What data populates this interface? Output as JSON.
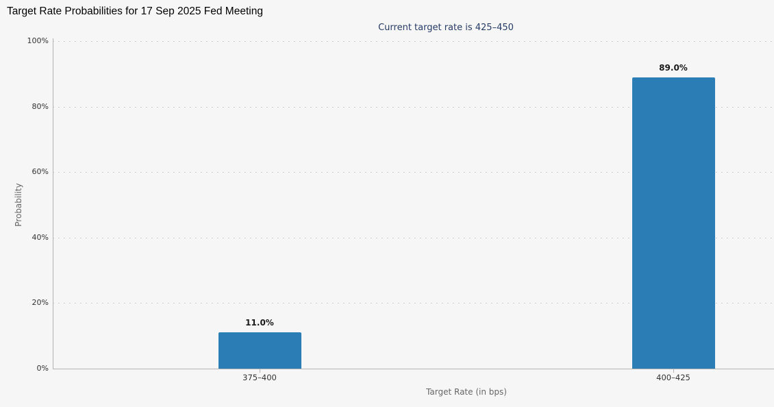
{
  "page": {
    "background_color": "#f6f6f6"
  },
  "chart_data": {
    "type": "bar",
    "title": "Target Rate Probabilities for 17 Sep 2025 Fed Meeting",
    "subtitle": "Current target rate is 425–450",
    "categories": [
      "375–400",
      "400–425"
    ],
    "values": [
      11.0,
      89.0
    ],
    "value_labels": [
      "11.0%",
      "89.0%"
    ],
    "xlabel": "Target Rate (in bps)",
    "ylabel": "Probability",
    "ylim": [
      0,
      100
    ],
    "yticks": [
      0,
      20,
      40,
      60,
      80,
      100
    ],
    "ytick_labels": [
      "0%",
      "20%",
      "40%",
      "60%",
      "80%",
      "100%"
    ],
    "grid": "horizontal dotted",
    "legend": "none",
    "bar_color": "#2b7db6",
    "subtitle_color": "#263a66",
    "gridline_color": "#cdcdcd",
    "axis_line_color": "#b3b3b3",
    "tick_label_color": "#333333",
    "axis_title_color": "#666666"
  }
}
